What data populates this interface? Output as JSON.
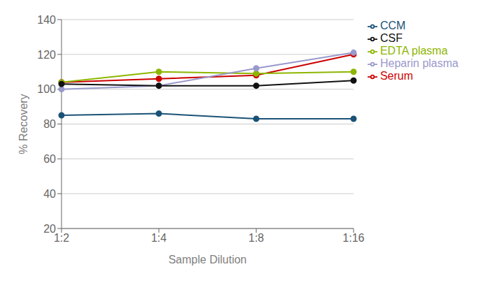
{
  "chart_data": {
    "type": "line",
    "categories": [
      "1:2",
      "1:4",
      "1:8",
      "1:16"
    ],
    "series": [
      {
        "name": "CCM",
        "color": "#1A5276",
        "values": [
          85,
          86,
          83,
          83
        ]
      },
      {
        "name": "Serum",
        "color": "#CC0000",
        "values": [
          104,
          106,
          108,
          120
        ]
      },
      {
        "name": "EDTA plasma",
        "color": "#8DB600",
        "values": [
          104,
          110,
          109,
          110
        ]
      },
      {
        "name": "Heparin plasma",
        "color": "#9999CC",
        "values": [
          100,
          102,
          112,
          121
        ]
      },
      {
        "name": "CSF",
        "color": "#111111",
        "values": [
          103,
          102,
          102,
          105
        ]
      }
    ],
    "x_label": "Sample Dilution",
    "y_label": "% Recovery",
    "ylim": [
      20,
      140
    ],
    "yticks": [
      20,
      40,
      60,
      80,
      100,
      120,
      140
    ],
    "grid": true,
    "legend": "right",
    "marker": "circle"
  }
}
